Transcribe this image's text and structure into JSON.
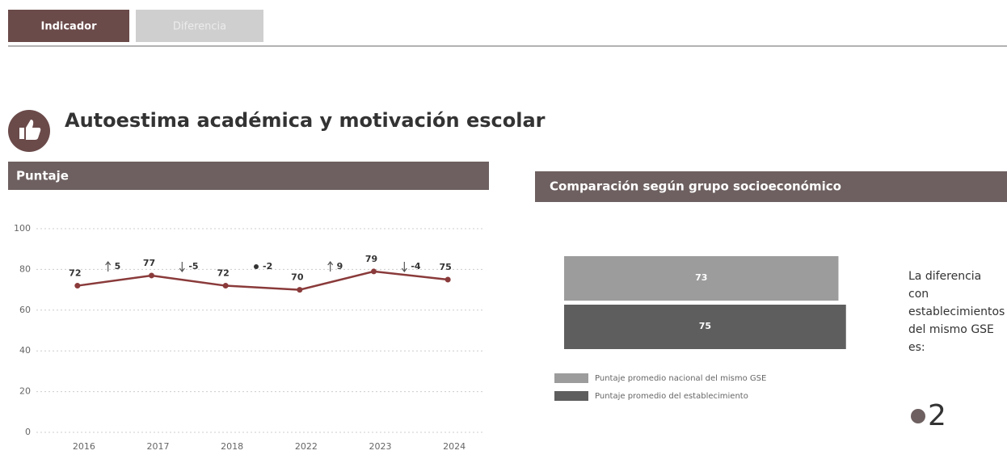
{
  "tabs": [
    "Indicador",
    "Diferencia"
  ],
  "heading": "Autoestima académica y motivación escolar",
  "chart_data": [
    {
      "type": "line",
      "title": "Puntaje",
      "categories": [
        "2016",
        "2017",
        "2018",
        "2022",
        "2023",
        "2024"
      ],
      "values": [
        72,
        77,
        72,
        70,
        79,
        75
      ],
      "changes": [
        5,
        -5,
        -2,
        9,
        -4
      ],
      "change_icons": [
        "up",
        "down",
        "same",
        "up",
        "down"
      ],
      "color": "#8a3a3a",
      "ylim": [
        0,
        100
      ],
      "yticks": [
        0,
        20,
        40,
        60,
        80,
        100
      ],
      "grid": true
    },
    {
      "type": "hbar",
      "title": "Comparación según grupo socioeconómico",
      "series": [
        {
          "name": "Puntaje promedio nacional del mismo GSE",
          "color": "#9c9c9c",
          "values": [
            73
          ]
        },
        {
          "name": "Puntaje promedio del establecimiento",
          "color": "#5e5e5e",
          "values": [
            75
          ]
        }
      ],
      "legend": "bottom"
    }
  ],
  "difference": {
    "text": [
      "La diferencia",
      "con",
      "establecimientos",
      "del mismo GSE",
      "es:"
    ],
    "value": 2
  }
}
